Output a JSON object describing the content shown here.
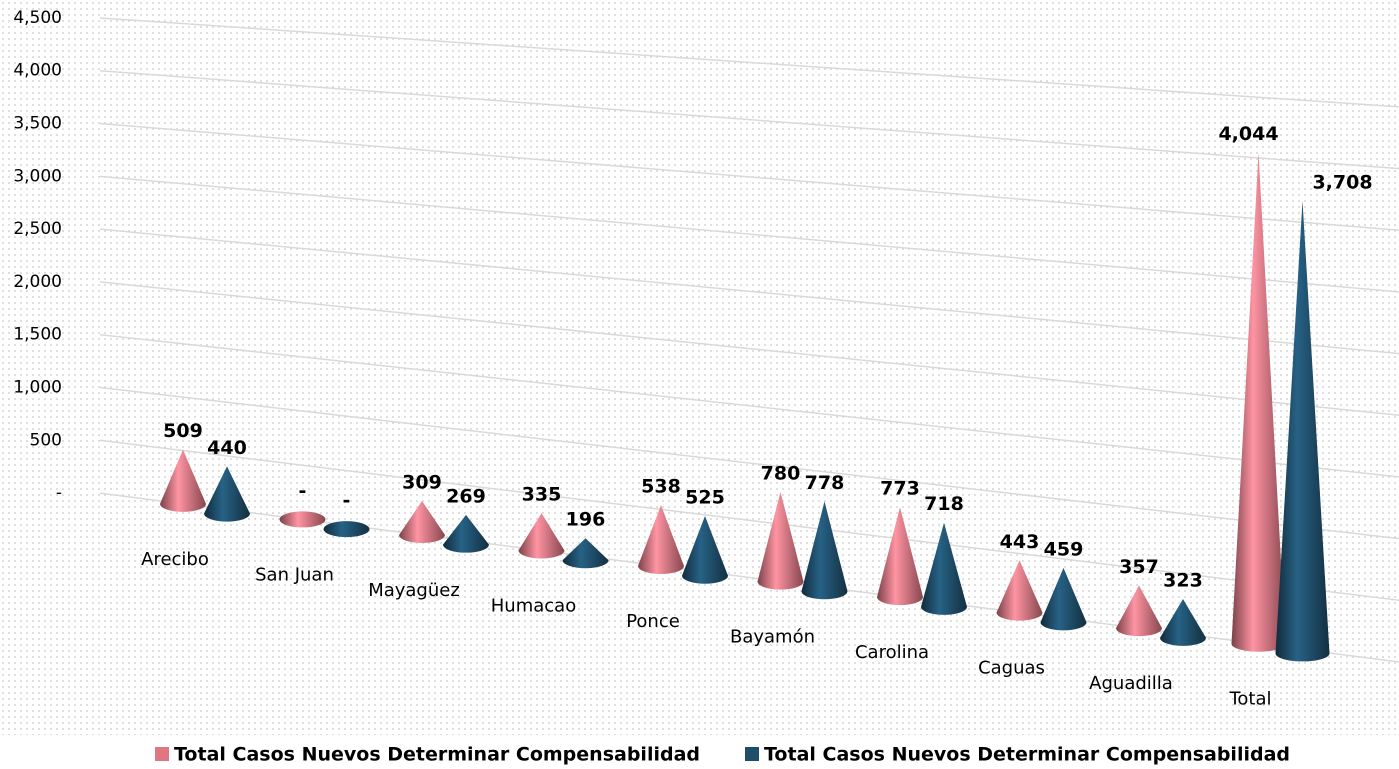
{
  "chart_data": {
    "type": "cone",
    "categories": [
      "Arecibo",
      "San Juan",
      "Mayagüez",
      "Humacao",
      "Ponce",
      "Bayamón",
      "Carolina",
      "Caguas",
      "Aguadilla",
      "Total"
    ],
    "series": [
      {
        "name": "Total Casos Nuevos Determinar Compensabilidad",
        "color": "#e07682",
        "values": [
          509,
          0,
          309,
          335,
          538,
          780,
          773,
          443,
          357,
          4044
        ],
        "value_labels": [
          "509",
          "-",
          "309",
          "335",
          "538",
          "780",
          "773",
          "443",
          "357",
          "4,044"
        ]
      },
      {
        "name": "Total Casos Nuevos Determinar Compensabilidad",
        "color": "#1f4e6b",
        "values": [
          440,
          0,
          269,
          196,
          525,
          778,
          718,
          459,
          323,
          3708
        ],
        "value_labels": [
          "440",
          "-",
          "269",
          "196",
          "525",
          "778",
          "718",
          "459",
          "323",
          "3,708"
        ]
      }
    ],
    "ylim": [
      0,
      4500
    ],
    "yticks": [
      {
        "value": 0,
        "label": "-"
      },
      500,
      {
        "value": 1000,
        "label": "1,000"
      },
      {
        "value": 1500,
        "label": "1,500"
      },
      {
        "value": 2000,
        "label": "2,000"
      },
      {
        "value": 2500,
        "label": "2,500"
      },
      {
        "value": 3000,
        "label": "3,000"
      },
      {
        "value": 3500,
        "label": "3,500"
      },
      {
        "value": 4000,
        "label": "4,000"
      },
      {
        "value": 4500,
        "label": "4,500"
      }
    ],
    "grid": true,
    "legend": "bottom"
  }
}
